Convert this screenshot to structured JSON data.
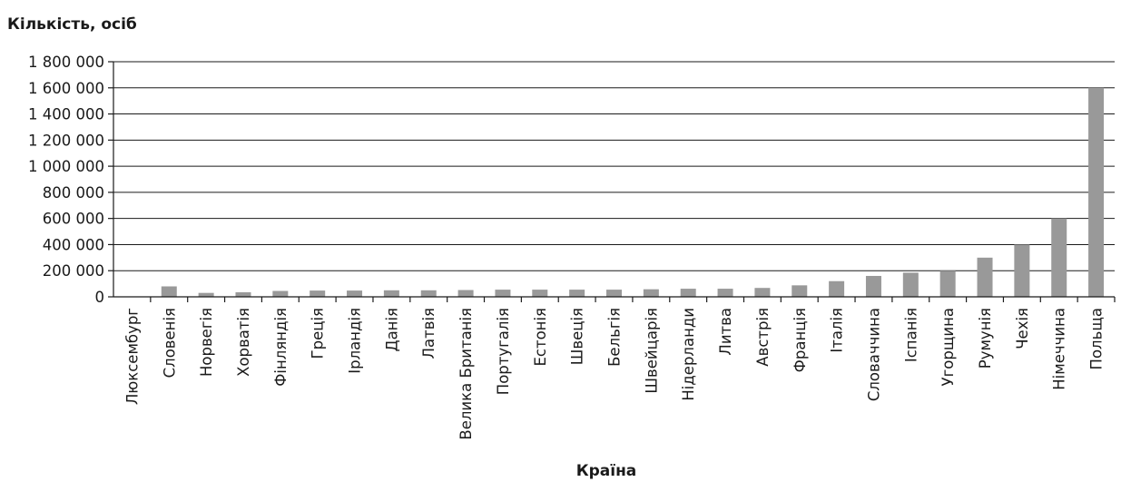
{
  "chart_data": {
    "type": "bar",
    "title": "",
    "ylabel": "Кількість, осіб",
    "xlabel": "Країна",
    "ylim": [
      0,
      1800000
    ],
    "yticks": [
      0,
      200000,
      400000,
      600000,
      800000,
      1000000,
      1200000,
      1400000,
      1600000,
      1800000
    ],
    "ytick_labels": [
      "0",
      "200 000",
      "400 000",
      "600 000",
      "800 000",
      "1 000 000",
      "1 200 000",
      "1 400 000",
      "1 600 000",
      "1 800 000"
    ],
    "grid": true,
    "bar_color": "#999999",
    "categories": [
      "Люксембург",
      "Словенія",
      "Норвегія",
      "Хорватія",
      "Фінляндія",
      "Греція",
      "Ірландія",
      "Данія",
      "Латвія",
      "Велика Британія",
      "Португалія",
      "Естонія",
      "Швеція",
      "Бельгія",
      "Швейцарія",
      "Нідерланди",
      "Литва",
      "Австрія",
      "Франція",
      "Італія",
      "Словаччина",
      "Іспанія",
      "Угорщина",
      "Румунія",
      "Чехія",
      "Німеччина",
      "Польща"
    ],
    "values": [
      0,
      80000,
      30000,
      35000,
      45000,
      48000,
      48000,
      50000,
      50000,
      52000,
      55000,
      55000,
      55000,
      55000,
      58000,
      62000,
      62000,
      68000,
      88000,
      120000,
      160000,
      185000,
      200000,
      300000,
      400000,
      600000,
      1600000
    ]
  }
}
